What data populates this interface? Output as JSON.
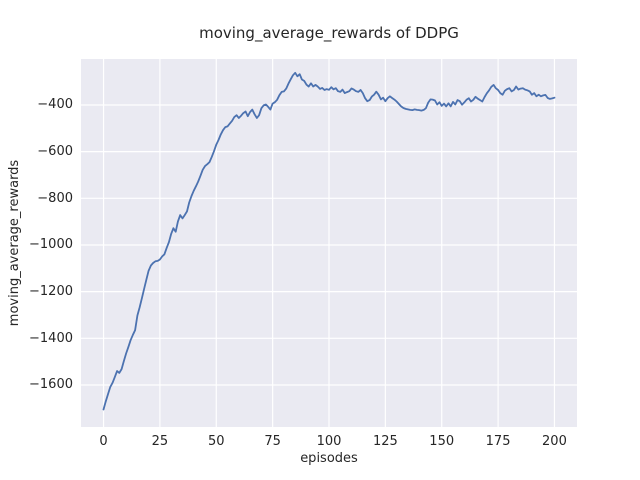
{
  "figure": {
    "background": "#ffffff",
    "axes_background": "#eaeaf2",
    "grid_color": "#ffffff",
    "text_color": "#262626"
  },
  "chart_data": {
    "type": "line",
    "title": "moving_average_rewards of DDPG",
    "xlabel": "episodes",
    "ylabel": "moving_average_rewards",
    "xlim": [
      -10,
      210
    ],
    "ylim": [
      -1780,
      -203
    ],
    "xticks": [
      0,
      25,
      50,
      75,
      100,
      125,
      150,
      175,
      200
    ],
    "yticks": [
      -400,
      -600,
      -800,
      -1000,
      -1200,
      -1400,
      -1600
    ],
    "grid": true,
    "legend_position": "none",
    "series": [
      {
        "name": "DDPG moving average rewards",
        "color": "#4c72b0",
        "x": {
          "start": 0,
          "end": 200,
          "step": 1
        },
        "y": [
          -1705,
          -1670,
          -1638,
          -1608,
          -1590,
          -1566,
          -1540,
          -1548,
          -1532,
          -1498,
          -1465,
          -1438,
          -1408,
          -1385,
          -1365,
          -1302,
          -1268,
          -1228,
          -1188,
          -1148,
          -1110,
          -1088,
          -1077,
          -1070,
          -1068,
          -1062,
          -1049,
          -1040,
          -1012,
          -988,
          -952,
          -928,
          -943,
          -900,
          -872,
          -886,
          -872,
          -856,
          -818,
          -790,
          -768,
          -748,
          -728,
          -703,
          -678,
          -662,
          -654,
          -645,
          -622,
          -598,
          -570,
          -550,
          -526,
          -508,
          -495,
          -492,
          -480,
          -468,
          -452,
          -444,
          -456,
          -446,
          -435,
          -428,
          -448,
          -430,
          -420,
          -440,
          -456,
          -444,
          -414,
          -402,
          -398,
          -408,
          -420,
          -394,
          -388,
          -378,
          -358,
          -344,
          -342,
          -330,
          -309,
          -290,
          -273,
          -262,
          -277,
          -268,
          -291,
          -297,
          -313,
          -321,
          -307,
          -321,
          -314,
          -321,
          -331,
          -327,
          -336,
          -332,
          -335,
          -324,
          -333,
          -328,
          -341,
          -344,
          -334,
          -349,
          -345,
          -341,
          -329,
          -334,
          -341,
          -344,
          -336,
          -349,
          -371,
          -384,
          -379,
          -364,
          -356,
          -343,
          -356,
          -376,
          -369,
          -384,
          -371,
          -363,
          -370,
          -377,
          -385,
          -396,
          -406,
          -413,
          -417,
          -419,
          -421,
          -422,
          -419,
          -421,
          -422,
          -424,
          -421,
          -414,
          -390,
          -376,
          -377,
          -381,
          -398,
          -388,
          -404,
          -394,
          -406,
          -393,
          -406,
          -387,
          -398,
          -379,
          -384,
          -399,
          -389,
          -378,
          -371,
          -385,
          -378,
          -365,
          -373,
          -379,
          -385,
          -366,
          -350,
          -337,
          -322,
          -314,
          -328,
          -336,
          -349,
          -356,
          -339,
          -332,
          -328,
          -342,
          -336,
          -321,
          -334,
          -330,
          -328,
          -334,
          -337,
          -342,
          -356,
          -349,
          -363,
          -356,
          -363,
          -359,
          -357,
          -370,
          -374,
          -372,
          -369
        ]
      }
    ]
  }
}
